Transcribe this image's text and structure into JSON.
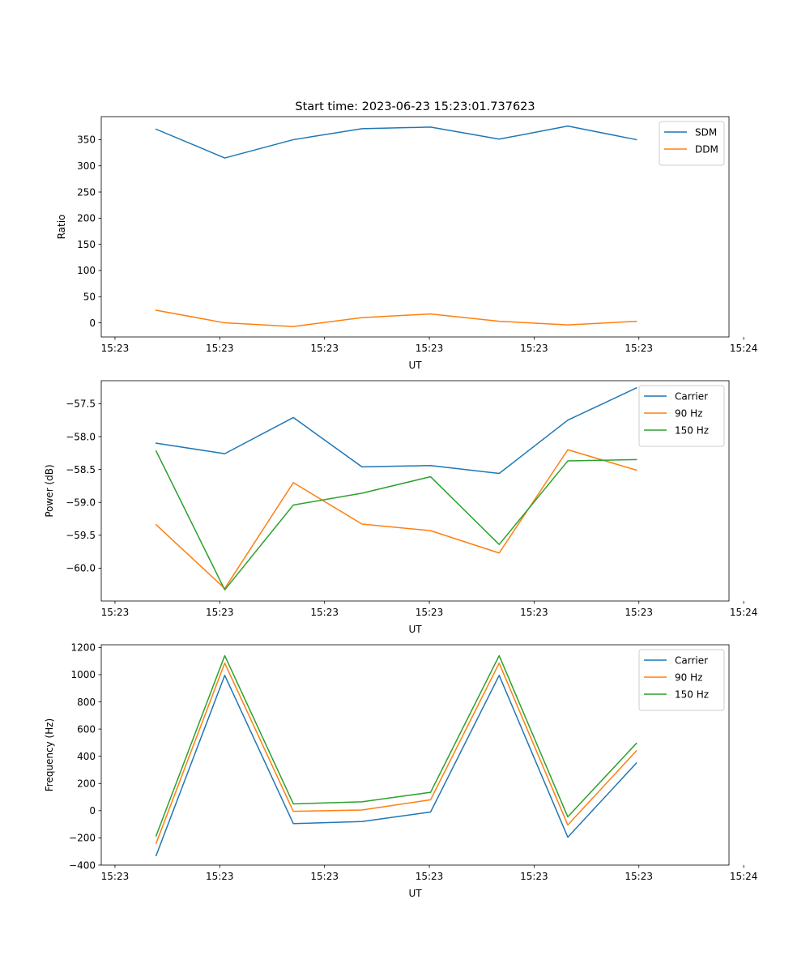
{
  "figure": {
    "title": "Start time: 2023-06-23 15:23:01.737623"
  },
  "chart_data": [
    {
      "type": "line",
      "xlabel": "UT",
      "ylabel": "Ratio",
      "x": [
        1,
        2,
        3,
        4,
        5,
        6,
        7,
        8
      ],
      "xlim": [
        0.2,
        9.35
      ],
      "x_ticks": [
        0.4,
        1.927,
        3.455,
        4.982,
        6.509,
        8.036,
        9.564
      ],
      "x_tick_labels": [
        "15:23",
        "15:23",
        "15:23",
        "15:23",
        "15:23",
        "15:23",
        "15:24"
      ],
      "ylim": [
        -27,
        394
      ],
      "y_ticks": [
        0,
        50,
        100,
        150,
        200,
        250,
        300,
        350
      ],
      "y_tick_labels": [
        "0",
        "50",
        "100",
        "150",
        "200",
        "250",
        "300",
        "350"
      ],
      "grid": false,
      "legend_position": "top-right",
      "series": [
        {
          "name": "SDM",
          "color": "#1f77b4",
          "values": [
            370,
            315,
            350,
            371,
            374,
            351,
            376,
            350
          ]
        },
        {
          "name": "DDM",
          "color": "#ff7f0e",
          "values": [
            24,
            0,
            -7,
            10,
            17,
            3,
            -4,
            3
          ]
        }
      ]
    },
    {
      "type": "line",
      "xlabel": "UT",
      "ylabel": "Power (dB)",
      "x": [
        1,
        2,
        3,
        4,
        5,
        6,
        7,
        8
      ],
      "xlim": [
        0.2,
        9.35
      ],
      "x_ticks": [
        0.4,
        1.927,
        3.455,
        4.982,
        6.509,
        8.036,
        9.564
      ],
      "x_tick_labels": [
        "15:23",
        "15:23",
        "15:23",
        "15:23",
        "15:23",
        "15:23",
        "15:24"
      ],
      "ylim": [
        -60.5,
        -57.15
      ],
      "y_ticks": [
        -60.0,
        -59.5,
        -59.0,
        -58.5,
        -58.0,
        -57.5
      ],
      "y_tick_labels": [
        "−60.0",
        "−59.5",
        "−59.0",
        "−58.5",
        "−58.0",
        "−57.5"
      ],
      "grid": false,
      "legend_position": "top-right",
      "series": [
        {
          "name": "Carrier",
          "color": "#1f77b4",
          "values": [
            -58.1,
            -58.26,
            -57.71,
            -58.46,
            -58.44,
            -58.56,
            -57.75,
            -57.26
          ]
        },
        {
          "name": "90 Hz",
          "color": "#ff7f0e",
          "values": [
            -59.34,
            -60.31,
            -58.7,
            -59.33,
            -59.43,
            -59.77,
            -58.2,
            -58.51
          ]
        },
        {
          "name": "150 Hz",
          "color": "#2ca02c",
          "values": [
            -58.22,
            -60.33,
            -59.04,
            -58.86,
            -58.61,
            -59.64,
            -58.37,
            -58.35
          ]
        }
      ]
    },
    {
      "type": "line",
      "xlabel": "UT",
      "ylabel": "Frequency (Hz)",
      "x": [
        1,
        2,
        3,
        4,
        5,
        6,
        7,
        8
      ],
      "xlim": [
        0.2,
        9.35
      ],
      "x_ticks": [
        0.4,
        1.927,
        3.455,
        4.982,
        6.509,
        8.036,
        9.564
      ],
      "x_tick_labels": [
        "15:23",
        "15:23",
        "15:23",
        "15:23",
        "15:23",
        "15:23",
        "15:24"
      ],
      "ylim": [
        -400,
        1220
      ],
      "y_ticks": [
        -400,
        -200,
        0,
        200,
        400,
        600,
        800,
        1000,
        1200
      ],
      "y_tick_labels": [
        "−400",
        "−200",
        "0",
        "200",
        "400",
        "600",
        "800",
        "1000",
        "1200"
      ],
      "grid": false,
      "legend_position": "top-right",
      "series": [
        {
          "name": "Carrier",
          "color": "#1f77b4",
          "values": [
            -330,
            995,
            -95,
            -80,
            -10,
            995,
            -195,
            350
          ]
        },
        {
          "name": "90 Hz",
          "color": "#ff7f0e",
          "values": [
            -240,
            1085,
            -5,
            5,
            80,
            1085,
            -105,
            440
          ]
        },
        {
          "name": "150 Hz",
          "color": "#2ca02c",
          "values": [
            -185,
            1140,
            50,
            65,
            135,
            1140,
            -45,
            495
          ]
        }
      ]
    }
  ]
}
